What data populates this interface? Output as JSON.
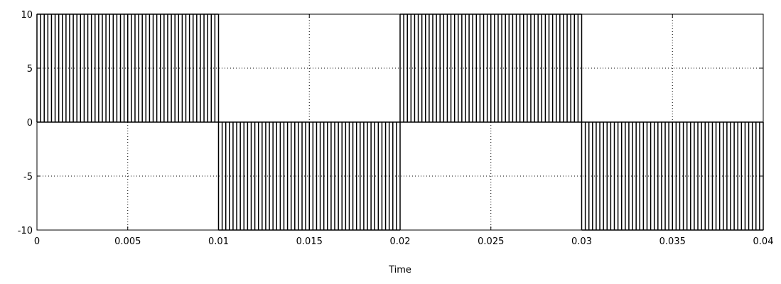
{
  "chart_data": {
    "type": "line",
    "title": "",
    "xlabel": "Time",
    "ylabel": "",
    "xlim": [
      0,
      0.04
    ],
    "ylim": [
      -10,
      10
    ],
    "x_ticks": [
      0,
      0.005,
      0.01,
      0.015,
      0.02,
      0.025,
      0.03,
      0.035,
      0.04
    ],
    "x_tick_labels": [
      "0",
      "0.005",
      "0.01",
      "0.015",
      "0.02",
      "0.025",
      "0.03",
      "0.035",
      "0.04"
    ],
    "y_ticks": [
      10,
      5,
      0,
      -5,
      -10
    ],
    "y_tick_labels": [
      "10",
      "5",
      "0",
      "-5",
      "-10"
    ],
    "grid": true,
    "legend": false,
    "line_color": "#000000",
    "signal": {
      "description_type": "pwm",
      "amplitude": 10,
      "fundamental_period": 0.02,
      "switching_period": 0.0002,
      "segments": [
        {
          "t_start": 0.0,
          "t_end": 0.01,
          "level": 10
        },
        {
          "t_start": 0.01,
          "t_end": 0.02,
          "level": -10
        },
        {
          "t_start": 0.02,
          "t_end": 0.03,
          "level": 10
        },
        {
          "t_start": 0.03,
          "t_end": 0.04,
          "level": -10
        }
      ]
    }
  }
}
